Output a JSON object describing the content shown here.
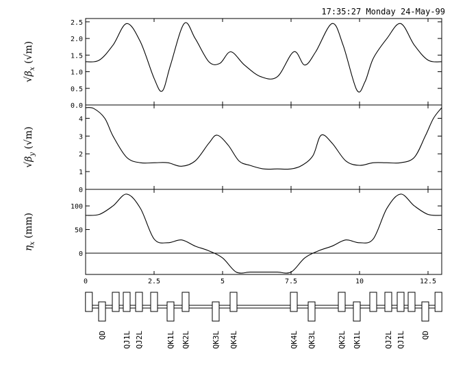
{
  "header": {
    "timestamp": "17:35:27 Monday 24-May-99"
  },
  "chart_data": [
    {
      "type": "line",
      "name": "beta-x-panel",
      "ylabel": "√βx (√m)",
      "ylabel_parts": {
        "sym": "β",
        "sub": "x",
        "unit": "(√m)"
      },
      "xlim": [
        0,
        13.0
      ],
      "ylim": [
        0,
        2.6
      ],
      "yticks": [
        0.0,
        0.5,
        1.0,
        1.5,
        2.0,
        2.5
      ],
      "ytick_labels": [
        "0.0",
        "0.5",
        "1.0",
        "1.5",
        "2.0",
        "2.5"
      ],
      "x": [
        0.0,
        0.5,
        1.0,
        1.5,
        2.0,
        2.5,
        2.8,
        3.1,
        3.6,
        4.0,
        4.5,
        4.9,
        5.3,
        5.8,
        6.4,
        7.0,
        7.6,
        8.0,
        8.4,
        9.0,
        9.4,
        9.9,
        10.2,
        10.5,
        11.0,
        11.5,
        12.0,
        12.5,
        13.0
      ],
      "values": [
        1.3,
        1.35,
        1.8,
        2.45,
        1.9,
        0.8,
        0.42,
        1.2,
        2.45,
        2.0,
        1.3,
        1.25,
        1.6,
        1.2,
        0.85,
        0.85,
        1.6,
        1.2,
        1.6,
        2.45,
        1.8,
        0.45,
        0.7,
        1.4,
        2.0,
        2.45,
        1.8,
        1.35,
        1.3
      ]
    },
    {
      "type": "line",
      "name": "beta-y-panel",
      "ylabel": "√βy (√m)",
      "ylabel_parts": {
        "sym": "β",
        "sub": "y",
        "unit": "(√m)"
      },
      "xlim": [
        0,
        13.0
      ],
      "ylim": [
        0,
        4.75
      ],
      "yticks": [
        0,
        1,
        2,
        3,
        4
      ],
      "ytick_labels": [
        "0",
        "1",
        "2",
        "3",
        "4"
      ],
      "x": [
        0.0,
        0.3,
        0.7,
        1.0,
        1.5,
        2.0,
        2.5,
        3.0,
        3.5,
        4.0,
        4.5,
        4.8,
        5.2,
        5.6,
        6.0,
        6.5,
        7.0,
        7.5,
        7.9,
        8.3,
        8.6,
        9.0,
        9.5,
        10.0,
        10.5,
        11.0,
        11.5,
        12.0,
        12.4,
        12.7,
        13.0
      ],
      "values": [
        4.6,
        4.55,
        4.0,
        3.0,
        1.8,
        1.5,
        1.5,
        1.5,
        1.3,
        1.6,
        2.6,
        3.05,
        2.5,
        1.6,
        1.35,
        1.15,
        1.15,
        1.15,
        1.35,
        1.9,
        3.05,
        2.6,
        1.6,
        1.35,
        1.5,
        1.5,
        1.5,
        1.8,
        3.0,
        4.0,
        4.6
      ]
    },
    {
      "type": "line",
      "name": "eta-x-panel",
      "ylabel": "ηx (mm)",
      "ylabel_parts": {
        "sym": "η",
        "sub": "x",
        "unit": "(mm)"
      },
      "xlim": [
        0,
        13.0
      ],
      "ylim": [
        -45,
        135
      ],
      "yticks": [
        0,
        50,
        100
      ],
      "ytick_labels": [
        "0",
        "50",
        "100"
      ],
      "zero_line": true,
      "x": [
        0.0,
        0.5,
        1.0,
        1.5,
        2.0,
        2.5,
        3.0,
        3.5,
        4.0,
        4.5,
        5.0,
        5.5,
        6.0,
        6.5,
        7.0,
        7.5,
        8.0,
        8.5,
        9.0,
        9.5,
        10.0,
        10.5,
        11.0,
        11.5,
        12.0,
        12.5,
        13.0
      ],
      "values": [
        80,
        82,
        100,
        125,
        95,
        30,
        22,
        28,
        15,
        5,
        -10,
        -40,
        -40,
        -40,
        -40,
        -40,
        -10,
        5,
        15,
        28,
        22,
        30,
        95,
        125,
        100,
        82,
        80
      ],
      "xticks": [
        0,
        2.5,
        5,
        7.5,
        10,
        12.5
      ],
      "xtick_labels": [
        "0",
        "2.5",
        "5",
        "7.5",
        "10",
        "12.5"
      ]
    }
  ],
  "lattice": {
    "magnets": [
      {
        "label": "",
        "s": 0.12,
        "pos": "up"
      },
      {
        "label": "QD",
        "s": 0.6,
        "pos": "down"
      },
      {
        "label": "",
        "s": 1.1,
        "pos": "up"
      },
      {
        "label": "QJ1L",
        "s": 1.5,
        "pos": "up"
      },
      {
        "label": "QJ2L",
        "s": 1.95,
        "pos": "up"
      },
      {
        "label": "",
        "s": 2.5,
        "pos": "up"
      },
      {
        "label": "QK1L",
        "s": 3.1,
        "pos": "down"
      },
      {
        "label": "QK2L",
        "s": 3.65,
        "pos": "up"
      },
      {
        "label": "QK3L",
        "s": 4.75,
        "pos": "down"
      },
      {
        "label": "QK4L",
        "s": 5.4,
        "pos": "up"
      },
      {
        "label": "QK4L",
        "s": 7.6,
        "pos": "up"
      },
      {
        "label": "QK3L",
        "s": 8.25,
        "pos": "down"
      },
      {
        "label": "QK2L",
        "s": 9.35,
        "pos": "up"
      },
      {
        "label": "QK1L",
        "s": 9.9,
        "pos": "down"
      },
      {
        "label": "",
        "s": 10.5,
        "pos": "up"
      },
      {
        "label": "QJ2L",
        "s": 11.05,
        "pos": "up"
      },
      {
        "label": "QJ1L",
        "s": 11.5,
        "pos": "up"
      },
      {
        "label": "",
        "s": 11.9,
        "pos": "up"
      },
      {
        "label": "QD",
        "s": 12.4,
        "pos": "down"
      },
      {
        "label": "",
        "s": 12.88,
        "pos": "up"
      }
    ]
  }
}
